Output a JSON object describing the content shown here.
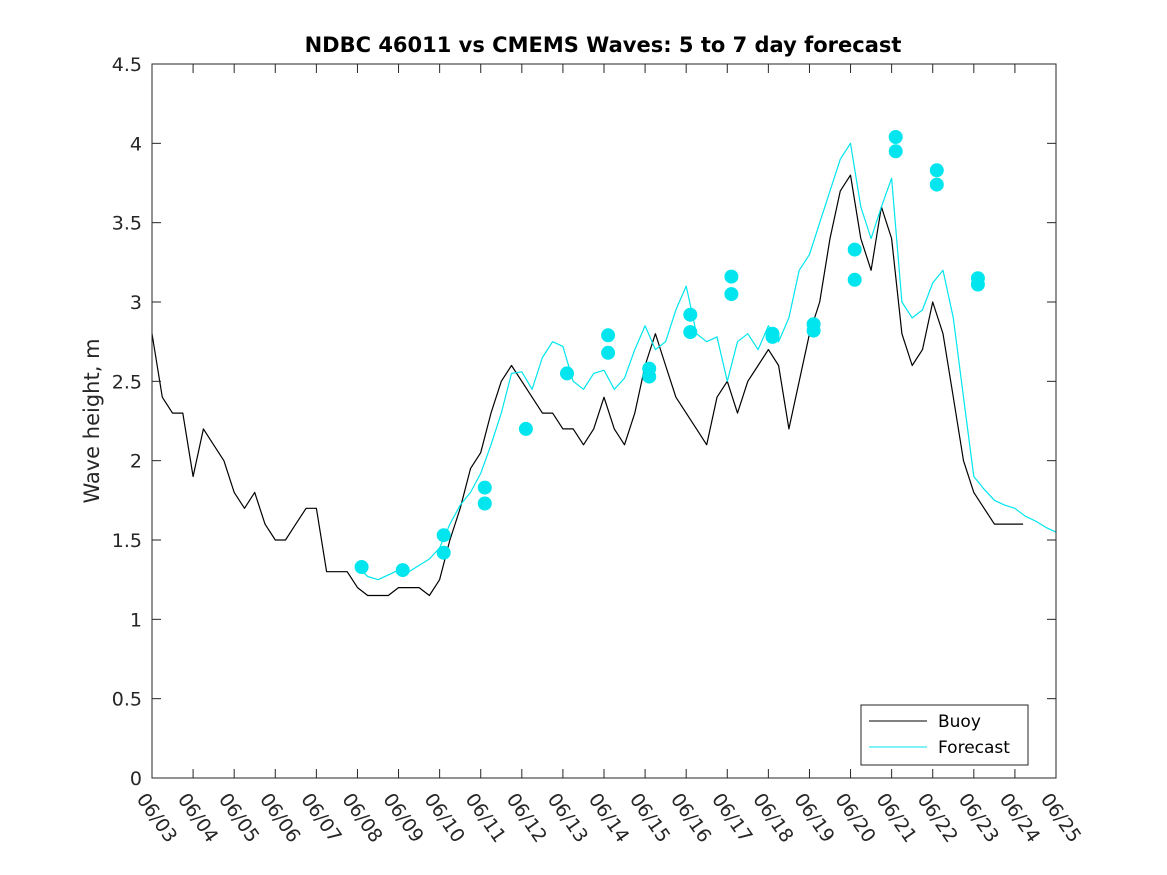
{
  "chart_data": {
    "type": "line",
    "title": "NDBC 46011 vs CMEMS Waves: 5 to 7 day forecast",
    "xlabel": "",
    "ylabel": "Wave height, m",
    "xlim": [
      0,
      22
    ],
    "ylim": [
      0,
      4.5
    ],
    "x_tick_labels": [
      "06/03",
      "06/04",
      "06/05",
      "06/06",
      "06/07",
      "06/08",
      "06/09",
      "06/10",
      "06/11",
      "06/12",
      "06/13",
      "06/14",
      "06/15",
      "06/16",
      "06/17",
      "06/18",
      "06/19",
      "06/20",
      "06/21",
      "06/22",
      "06/23",
      "06/24",
      "06/25"
    ],
    "y_tick_labels": [
      "0",
      "0.5",
      "1",
      "1.5",
      "2",
      "2.5",
      "3",
      "3.5",
      "4",
      "4.5"
    ],
    "grid": false,
    "legend": {
      "position": "bottom-right",
      "entries": [
        "Buoy",
        "Forecast"
      ]
    },
    "series": [
      {
        "name": "Buoy",
        "color": "#000000",
        "x": [
          0.0,
          0.25,
          0.5,
          0.75,
          1.0,
          1.25,
          1.5,
          1.75,
          2.0,
          2.25,
          2.5,
          2.75,
          3.0,
          3.25,
          3.5,
          3.75,
          4.0,
          4.25,
          4.5,
          4.75,
          5.0,
          5.25,
          5.5,
          5.75,
          6.0,
          6.25,
          6.5,
          6.75,
          7.0,
          7.25,
          7.5,
          7.75,
          8.0,
          8.25,
          8.5,
          8.75,
          9.0,
          9.25,
          9.5,
          9.75,
          10.0,
          10.25,
          10.5,
          10.75,
          11.0,
          11.25,
          11.5,
          11.75,
          12.0,
          12.25,
          12.5,
          12.75,
          13.0,
          13.25,
          13.5,
          13.75,
          14.0,
          14.25,
          14.5,
          14.75,
          15.0,
          15.25,
          15.5,
          15.75,
          16.0,
          16.25,
          16.5,
          16.75,
          17.0,
          17.25,
          17.5,
          17.75,
          18.0,
          18.25,
          18.5,
          18.75,
          19.0,
          19.25,
          19.5,
          19.75,
          20.0,
          20.25,
          20.5,
          20.75,
          21.0,
          21.2
        ],
        "y": [
          2.8,
          2.4,
          2.3,
          2.3,
          1.9,
          2.2,
          2.1,
          2.0,
          1.8,
          1.7,
          1.8,
          1.6,
          1.5,
          1.5,
          1.6,
          1.7,
          1.7,
          1.3,
          1.3,
          1.3,
          1.2,
          1.15,
          1.15,
          1.15,
          1.2,
          1.2,
          1.2,
          1.15,
          1.25,
          1.5,
          1.7,
          1.95,
          2.05,
          2.3,
          2.5,
          2.6,
          2.5,
          2.4,
          2.3,
          2.3,
          2.2,
          2.2,
          2.1,
          2.2,
          2.4,
          2.2,
          2.1,
          2.3,
          2.6,
          2.8,
          2.6,
          2.4,
          2.3,
          2.2,
          2.1,
          2.4,
          2.5,
          2.3,
          2.5,
          2.6,
          2.7,
          2.6,
          2.2,
          2.5,
          2.8,
          3.0,
          3.4,
          3.7,
          3.8,
          3.4,
          3.2,
          3.6,
          3.4,
          2.8,
          2.6,
          2.7,
          3.0,
          2.8,
          2.4,
          2.0,
          1.8,
          1.7,
          1.6,
          1.6,
          1.6,
          1.6
        ]
      },
      {
        "name": "Forecast",
        "color": "#00e5ee",
        "x": [
          5.0,
          5.25,
          5.5,
          5.75,
          6.0,
          6.25,
          6.5,
          6.75,
          7.0,
          7.25,
          7.5,
          7.75,
          8.0,
          8.25,
          8.5,
          8.75,
          9.0,
          9.25,
          9.5,
          9.75,
          10.0,
          10.25,
          10.5,
          10.75,
          11.0,
          11.25,
          11.5,
          11.75,
          12.0,
          12.25,
          12.5,
          12.75,
          13.0,
          13.25,
          13.5,
          13.75,
          14.0,
          14.25,
          14.5,
          14.75,
          15.0,
          15.25,
          15.5,
          15.75,
          16.0,
          16.25,
          16.5,
          16.75,
          17.0,
          17.25,
          17.5,
          17.75,
          18.0,
          18.25,
          18.5,
          18.75,
          19.0,
          19.25,
          19.5,
          19.75,
          20.0,
          20.25,
          20.5,
          20.75,
          21.0,
          21.25,
          21.5,
          21.75,
          22.0
        ],
        "y": [
          1.33,
          1.27,
          1.25,
          1.28,
          1.31,
          1.3,
          1.34,
          1.38,
          1.45,
          1.6,
          1.72,
          1.8,
          1.92,
          2.1,
          2.3,
          2.55,
          2.56,
          2.45,
          2.65,
          2.75,
          2.72,
          2.5,
          2.45,
          2.55,
          2.57,
          2.45,
          2.52,
          2.7,
          2.85,
          2.7,
          2.75,
          2.95,
          3.1,
          2.8,
          2.75,
          2.78,
          2.5,
          2.75,
          2.8,
          2.7,
          2.85,
          2.75,
          2.9,
          3.2,
          3.3,
          3.5,
          3.7,
          3.9,
          4.0,
          3.6,
          3.4,
          3.6,
          3.78,
          3.0,
          2.9,
          2.95,
          3.12,
          3.2,
          2.9,
          2.4,
          1.9,
          1.82,
          1.75,
          1.72,
          1.7,
          1.65,
          1.62,
          1.58,
          1.55
        ]
      }
    ],
    "forecast_markers": {
      "x": [
        5.1,
        6.1,
        7.1,
        7.1,
        8.1,
        8.1,
        9.1,
        10.1,
        11.1,
        11.1,
        12.1,
        12.1,
        13.1,
        13.1,
        14.1,
        14.1,
        15.1,
        15.1,
        16.1,
        16.1,
        17.1,
        17.1,
        18.1,
        18.1,
        19.1,
        19.1,
        20.1,
        20.1
      ],
      "y": [
        1.33,
        1.31,
        1.42,
        1.53,
        1.73,
        1.83,
        2.2,
        2.55,
        2.68,
        2.79,
        2.53,
        2.58,
        2.81,
        2.92,
        3.05,
        3.16,
        2.78,
        2.8,
        2.82,
        2.86,
        3.14,
        3.33,
        3.95,
        4.04,
        3.74,
        3.83,
        3.11,
        3.15
      ]
    }
  }
}
